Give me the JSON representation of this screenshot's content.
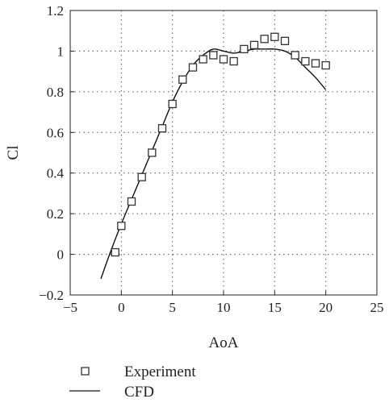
{
  "chart_data": {
    "type": "line",
    "title": "",
    "xlabel": "AoA",
    "ylabel": "Cl",
    "xlim": [
      -5,
      25
    ],
    "ylim": [
      -0.2,
      1.2
    ],
    "xticks": [
      -5,
      0,
      5,
      10,
      15,
      20,
      25
    ],
    "yticks": [
      -0.2,
      0,
      0.2,
      0.4,
      0.6,
      0.8,
      1,
      1.2
    ],
    "xtick_labels": [
      "−5",
      "0",
      "5",
      "10",
      "15",
      "20",
      "25"
    ],
    "ytick_labels": [
      "−0.2",
      "0",
      "0.2",
      "0.4",
      "0.6",
      "0.8",
      "1",
      "1.2"
    ],
    "grid": true,
    "legend_position": "bottom-left, below plot",
    "series": [
      {
        "name": "Experiment",
        "type": "scatter",
        "marker": "open-square",
        "color": "#333333",
        "x": [
          -0.6,
          0,
          1,
          2,
          3,
          4,
          5,
          6,
          7,
          8,
          9,
          10,
          11,
          12,
          13,
          14,
          15,
          16,
          17,
          18,
          19,
          20
        ],
        "y": [
          0.01,
          0.14,
          0.26,
          0.38,
          0.5,
          0.62,
          0.74,
          0.86,
          0.92,
          0.96,
          0.98,
          0.96,
          0.95,
          1.01,
          1.03,
          1.06,
          1.07,
          1.05,
          0.98,
          0.95,
          0.94,
          0.93
        ]
      },
      {
        "name": "CFD",
        "type": "line",
        "color": "#111111",
        "x": [
          -2,
          -1,
          0,
          1,
          2,
          3,
          4,
          5,
          6,
          7,
          8,
          9,
          10,
          11,
          12,
          13,
          14,
          15,
          16,
          17,
          18,
          19,
          20
        ],
        "y": [
          -0.12,
          0.02,
          0.15,
          0.27,
          0.39,
          0.51,
          0.63,
          0.75,
          0.85,
          0.93,
          0.98,
          1.01,
          1.0,
          0.99,
          1.0,
          1.01,
          1.01,
          1.01,
          1.0,
          0.97,
          0.92,
          0.87,
          0.81
        ]
      }
    ]
  }
}
